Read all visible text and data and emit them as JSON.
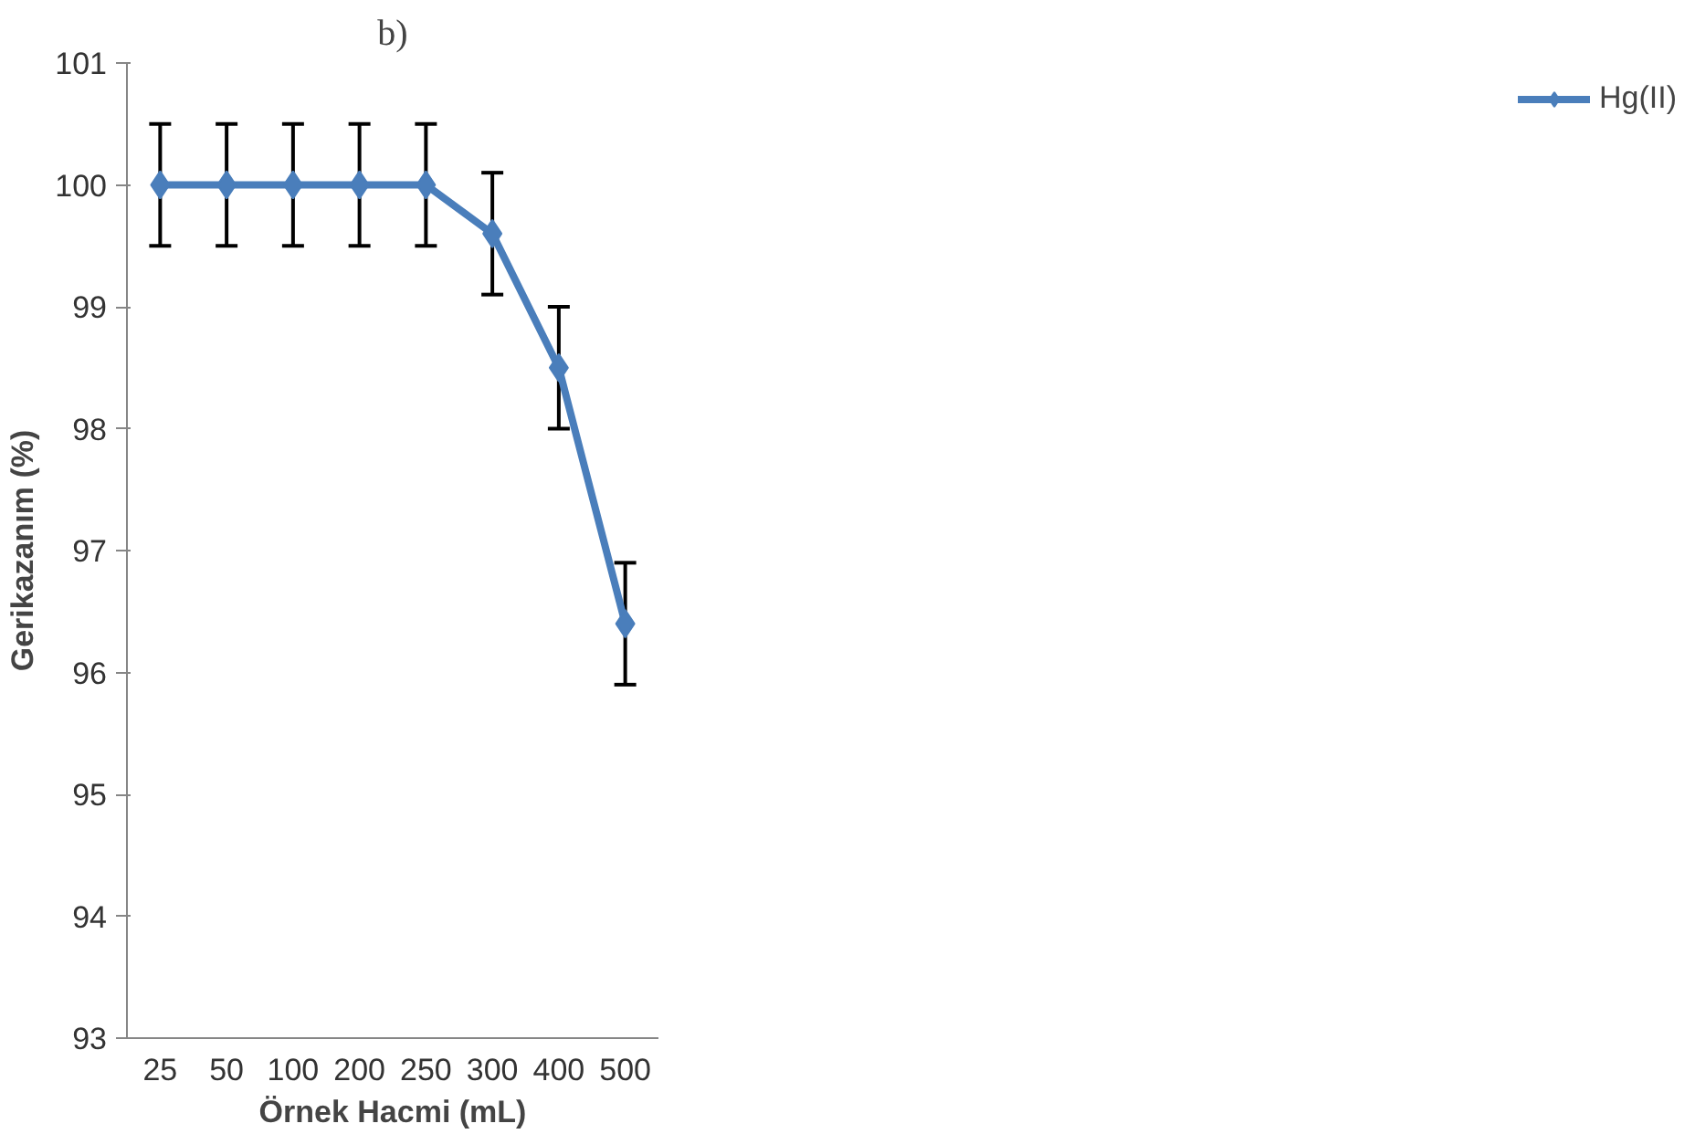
{
  "chart_data": {
    "type": "line",
    "title": "b)",
    "xlabel": "Örnek Hacmi (mL)",
    "ylabel": "Gerikazanım (%)",
    "categories": [
      "25",
      "50",
      "100",
      "200",
      "250",
      "300",
      "400",
      "500"
    ],
    "series": [
      {
        "name": "Hg(II)",
        "color": "#4a7ebb",
        "values": [
          100,
          100,
          100,
          100,
          100,
          99.6,
          98.5,
          96.4
        ],
        "errors": [
          0.5,
          0.5,
          0.5,
          0.5,
          0.5,
          0.5,
          0.5,
          0.5
        ]
      }
    ],
    "ylim": [
      93,
      101
    ],
    "yticks": [
      93,
      94,
      95,
      96,
      97,
      98,
      99,
      100,
      101
    ],
    "grid": false,
    "legend": "right",
    "marker": "diamond",
    "line_style": "solid"
  }
}
